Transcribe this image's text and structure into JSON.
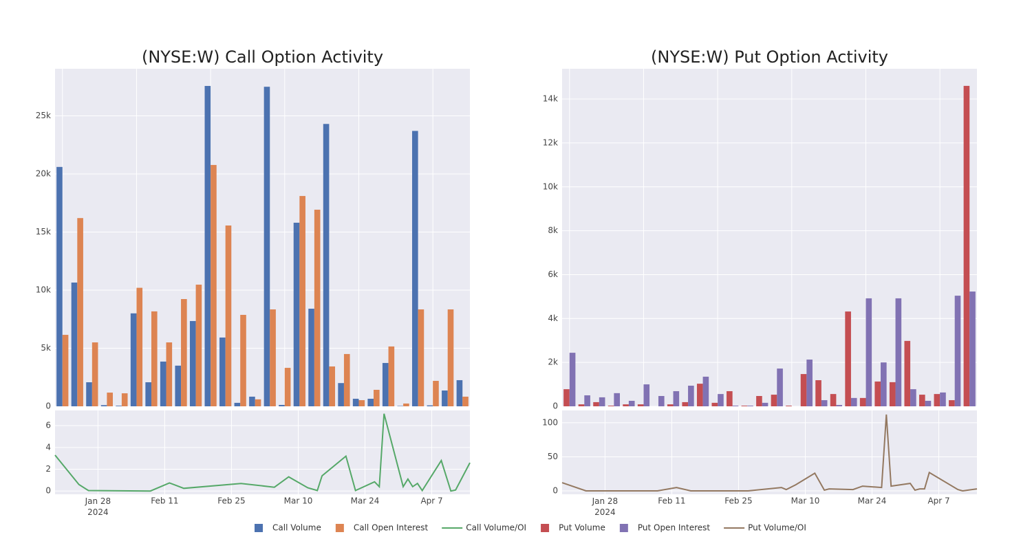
{
  "chart_data": [
    {
      "type": "bar",
      "title": "(NYSE:W) Call Option Activity",
      "categories": [
        null,
        null,
        null,
        null,
        null,
        null,
        null,
        null,
        null,
        null,
        null,
        null,
        null,
        null,
        null,
        null,
        null,
        null,
        null,
        null,
        null,
        null,
        null,
        null,
        null,
        null,
        null,
        null
      ],
      "series": [
        {
          "name": "Call Volume",
          "color": "#4c72b0",
          "values": [
            20600,
            10650,
            2070,
            100,
            50,
            8000,
            2070,
            3850,
            3500,
            7340,
            27570,
            5920,
            300,
            830,
            27500,
            120,
            15800,
            8400,
            24300,
            2000,
            650,
            650,
            3730,
            30,
            23700,
            80,
            1360,
            2250
          ]
        },
        {
          "name": "Call Open Interest",
          "color": "#dd8452",
          "values": [
            6150,
            16200,
            5500,
            1180,
            1120,
            10200,
            8170,
            5500,
            9230,
            10470,
            20770,
            15560,
            7870,
            600,
            8340,
            3310,
            18100,
            16920,
            3430,
            4500,
            530,
            1420,
            5150,
            240,
            8340,
            2190,
            8340,
            830
          ]
        }
      ],
      "ylim": [
        0,
        29050
      ],
      "yticks": [
        0,
        {
          "value": 5000,
          "label": "5k"
        },
        {
          "value": 10000,
          "label": "10k"
        },
        {
          "value": 15000,
          "label": "15k"
        },
        {
          "value": 20000,
          "label": "20k"
        },
        {
          "value": 25000,
          "label": "25k"
        }
      ],
      "grid": true
    },
    {
      "type": "line",
      "x": [
        "2024-01-19",
        "2024-01-24",
        "2024-01-26",
        "2024-02-08",
        "2024-02-12",
        "2024-02-15",
        "2024-02-27",
        "2024-03-05",
        "2024-03-08",
        "2024-03-12",
        "2024-03-14",
        "2024-03-15",
        "2024-03-20",
        "2024-03-22",
        "2024-03-26",
        "2024-03-27",
        "2024-03-28",
        "2024-04-01",
        "2024-04-02",
        "2024-04-03",
        "2024-04-04",
        "2024-04-05",
        "2024-04-09",
        "2024-04-11",
        "2024-04-12",
        "2024-04-15"
      ],
      "series": [
        {
          "name": "Call Volume/OI",
          "color": "#55a868",
          "values": [
            3.3,
            0.6,
            0.05,
            0,
            0.75,
            0.25,
            0.7,
            0.35,
            1.3,
            0.3,
            0.05,
            1.4,
            3.2,
            0.05,
            0.85,
            0.4,
            7.1,
            0.4,
            1.1,
            0.4,
            0.7,
            0.05,
            2.8,
            0,
            0.1,
            2.6
          ]
        }
      ],
      "xlim": [
        "2024-01-19",
        "2024-04-15"
      ],
      "xticks": [
        {
          "value": "2024-01-28",
          "label": "Jan 28\n2024"
        },
        {
          "value": "2024-02-11",
          "label": "Feb 11"
        },
        {
          "value": "2024-02-25",
          "label": "Feb 25"
        },
        {
          "value": "2024-03-10",
          "label": "Mar 10"
        },
        {
          "value": "2024-03-24",
          "label": "Mar 24"
        },
        {
          "value": "2024-04-07",
          "label": "Apr 7"
        }
      ],
      "ylim": [
        -0.3,
        7.4
      ],
      "yticks": [
        0,
        2,
        4,
        6
      ],
      "grid": true
    },
    {
      "type": "bar",
      "title": "(NYSE:W) Put Option Activity",
      "categories": [
        null,
        null,
        null,
        null,
        null,
        null,
        null,
        null,
        null,
        null,
        null,
        null,
        null,
        null,
        null,
        null,
        null,
        null,
        null,
        null,
        null,
        null,
        null,
        null,
        null,
        null,
        null,
        null
      ],
      "series": [
        {
          "name": "Put Volume",
          "color": "#c44e52",
          "values": [
            780,
            90,
            190,
            30,
            90,
            90,
            0,
            90,
            190,
            1030,
            160,
            690,
            30,
            470,
            530,
            30,
            1470,
            1190,
            560,
            4320,
            380,
            1130,
            1100,
            2980,
            530,
            560,
            280,
            14600
          ]
        },
        {
          "name": "Put Open Interest",
          "color": "#8172b3",
          "values": [
            2440,
            500,
            410,
            600,
            250,
            1000,
            470,
            690,
            940,
            1350,
            560,
            30,
            30,
            160,
            1720,
            0,
            2130,
            280,
            60,
            380,
            4920,
            2000,
            4920,
            780,
            250,
            630,
            5040,
            5230
          ]
        }
      ],
      "ylim": [
        0,
        15380
      ],
      "yticks": [
        0,
        {
          "value": 2000,
          "label": "2k"
        },
        {
          "value": 4000,
          "label": "4k"
        },
        {
          "value": 6000,
          "label": "6k"
        },
        {
          "value": 8000,
          "label": "8k"
        },
        {
          "value": 10000,
          "label": "10k"
        },
        {
          "value": 12000,
          "label": "12k"
        },
        {
          "value": 14000,
          "label": "14k"
        }
      ],
      "grid": true
    },
    {
      "type": "line",
      "x": [
        "2024-01-19",
        "2024-01-24",
        "2024-02-08",
        "2024-02-12",
        "2024-02-15",
        "2024-02-27",
        "2024-03-05",
        "2024-03-06",
        "2024-03-08",
        "2024-03-12",
        "2024-03-14",
        "2024-03-15",
        "2024-03-20",
        "2024-03-22",
        "2024-03-26",
        "2024-03-27",
        "2024-03-28",
        "2024-04-01",
        "2024-04-02",
        "2024-04-03",
        "2024-04-04",
        "2024-04-05",
        "2024-04-11",
        "2024-04-12",
        "2024-04-15"
      ],
      "series": [
        {
          "name": "Put Volume/OI",
          "color": "#937860",
          "values": [
            12,
            0,
            0,
            5,
            0,
            0,
            5,
            2,
            9,
            26,
            1,
            3,
            2,
            7,
            5,
            112,
            7,
            11,
            1,
            3,
            3,
            27,
            2,
            0,
            3
          ]
        }
      ],
      "xlim": [
        "2024-01-19",
        "2024-04-15"
      ],
      "xticks": [
        {
          "value": "2024-01-28",
          "label": "Jan 28\n2024"
        },
        {
          "value": "2024-02-11",
          "label": "Feb 11"
        },
        {
          "value": "2024-02-25",
          "label": "Feb 25"
        },
        {
          "value": "2024-03-10",
          "label": "Mar 10"
        },
        {
          "value": "2024-03-24",
          "label": "Mar 24"
        },
        {
          "value": "2024-04-07",
          "label": "Apr 7"
        }
      ],
      "ylim": [
        -5,
        118
      ],
      "yticks": [
        0,
        50,
        100
      ],
      "grid": true
    }
  ]
}
